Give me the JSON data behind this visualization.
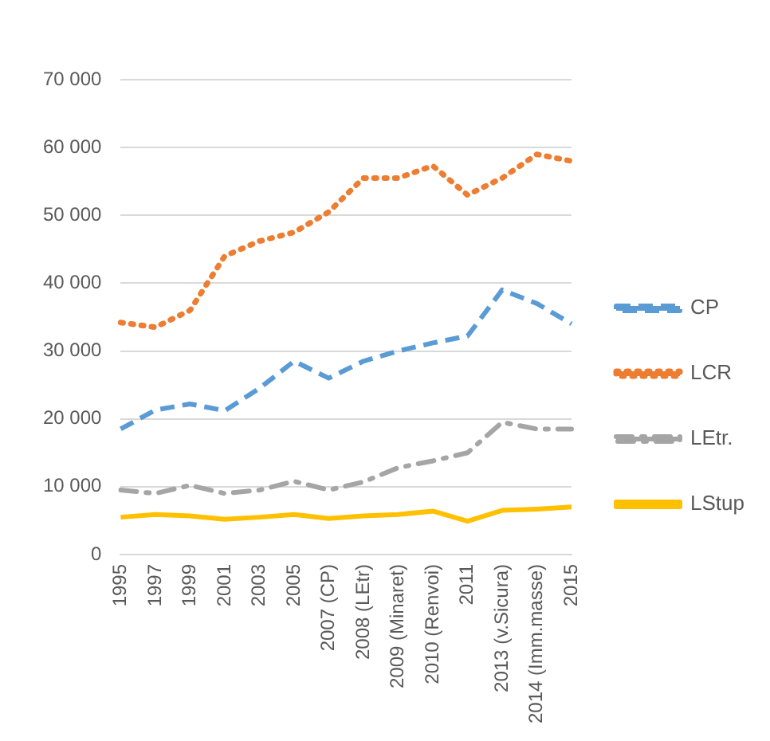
{
  "chart_data": {
    "type": "line",
    "categories": [
      "1995",
      "1997",
      "1999",
      "2001",
      "2003",
      "2005",
      "2007 (CP)",
      "2008 (LEtr)",
      "2009 (Minaret)",
      "2010 (Renvoi)",
      "2011",
      "2013 (v.Sicura)",
      "2014 (Imm.masse)",
      "2015"
    ],
    "series": [
      {
        "name": "CP",
        "color": "#5b9bd5",
        "line_style": "dashed",
        "values": [
          18500,
          21300,
          22200,
          21200,
          24500,
          28500,
          26000,
          28500,
          30000,
          31200,
          32200,
          39000,
          37000,
          34000
        ]
      },
      {
        "name": "LCR",
        "color": "#ed7d31",
        "line_style": "dotted",
        "values": [
          34200,
          33500,
          36000,
          44000,
          46200,
          47500,
          50500,
          55500,
          55500,
          57300,
          53000,
          55500,
          59000,
          58000
        ]
      },
      {
        "name": "LEtr.",
        "color": "#a5a5a5",
        "line_style": "dashdot",
        "values": [
          9500,
          9000,
          10200,
          9000,
          9500,
          10800,
          9500,
          10700,
          12800,
          13800,
          15000,
          19500,
          18500,
          18500
        ]
      },
      {
        "name": "LStup",
        "color": "#ffc000",
        "line_style": "solid",
        "values": [
          5500,
          5900,
          5700,
          5200,
          5500,
          5900,
          5300,
          5700,
          5900,
          6400,
          4900,
          6500,
          6700,
          7000
        ]
      }
    ],
    "ylim": [
      0,
      70000
    ],
    "yticks": [
      0,
      {
        "value": 10000,
        "label": "10 000"
      },
      {
        "value": 20000,
        "label": "20 000"
      },
      {
        "value": 30000,
        "label": "30 000"
      },
      {
        "value": 40000,
        "label": "40 000"
      },
      {
        "value": 50000,
        "label": "50 000"
      },
      {
        "value": 60000,
        "label": "60 000"
      },
      {
        "value": 70000,
        "label": "70 000"
      }
    ],
    "grid": "y",
    "legend": "right",
    "marker": "none"
  }
}
